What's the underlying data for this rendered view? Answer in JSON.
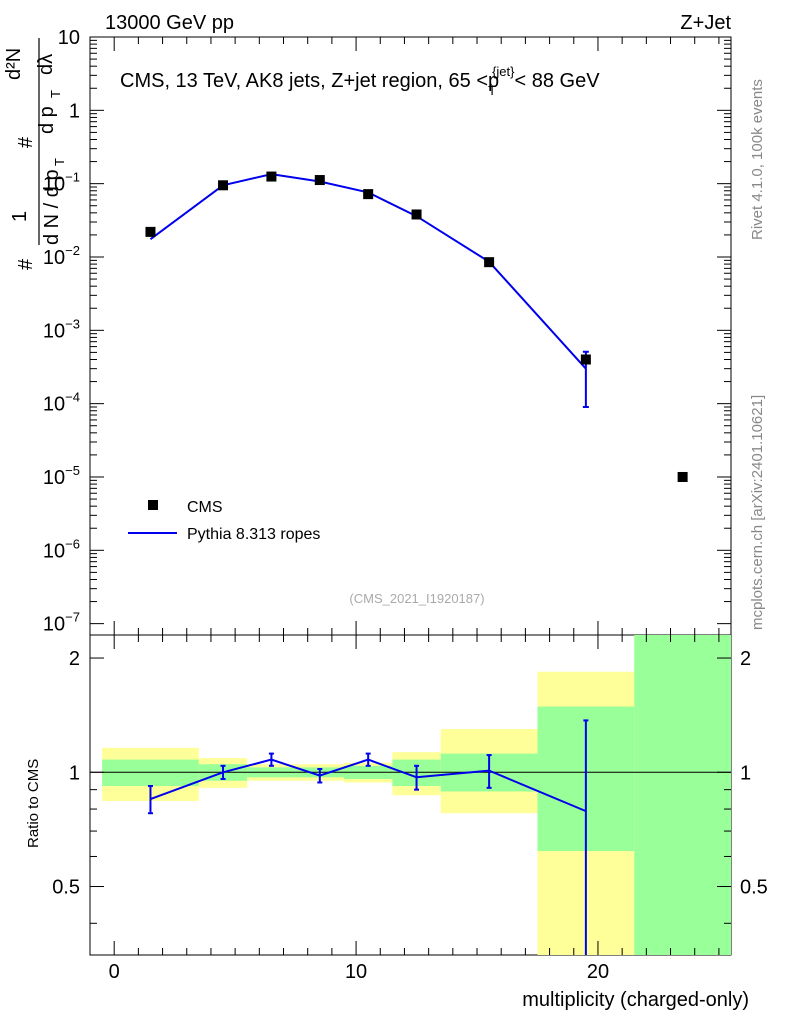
{
  "header": {
    "left": "13000 GeV pp",
    "right": "Z+Jet"
  },
  "side": {
    "rivet": "Rivet 4.1.0,  100k events",
    "mcplots": "mcplots.cern.ch [arXiv:2401.10621]"
  },
  "chart_data": {
    "type": "scatter",
    "title": "CMS, 13 TeV, AK8 jets, Z+jet region, 65 <",
    "title_pt": "p",
    "title_sub": "T",
    "title_sup": "{jet}",
    "title_tail": "< 88 GeV",
    "analysis": "(CMS_2021_I1920187)",
    "xlabel": "multiplicity (charged-only)",
    "ylabel_main": "1/N dN/dp_T dλ",
    "ylabel_ratio": "Ratio to CMS",
    "ylabel_parts": {
      "hash": "#",
      "one": "1",
      "dN": "d N / d p",
      "sub_T": "T",
      "d2N": "d²N",
      "dpT": "d p",
      "dlambda": "dλ"
    },
    "xlim": [
      -1,
      25.5
    ],
    "ylim_main": [
      7e-08,
      10
    ],
    "ylim_ratio": [
      0.33,
      2.3
    ],
    "x_ticks": [
      "0",
      "10",
      "20"
    ],
    "y_ticks_main": [
      {
        "base": "10",
        "exp": ""
      },
      {
        "base": "1",
        "exp": ""
      },
      {
        "base": "10",
        "exp": "−1"
      },
      {
        "base": "10",
        "exp": "−2"
      },
      {
        "base": "10",
        "exp": "−3"
      },
      {
        "base": "10",
        "exp": "−4"
      },
      {
        "base": "10",
        "exp": "−5"
      },
      {
        "base": "10",
        "exp": "−6"
      },
      {
        "base": "10",
        "exp": "−7"
      }
    ],
    "y_ticks_ratio": [
      "0.5",
      "1",
      "2"
    ],
    "legend": [
      {
        "label": "CMS",
        "marker": "square",
        "color": "#000000"
      },
      {
        "label": "Pythia 8.313 ropes",
        "marker": "line",
        "color": "#0000ee"
      }
    ],
    "bins": [
      {
        "x": 1.5,
        "lo": -0.5,
        "hi": 3.5
      },
      {
        "x": 4.5,
        "lo": 3.5,
        "hi": 5.5
      },
      {
        "x": 6.5,
        "lo": 5.5,
        "hi": 7.5
      },
      {
        "x": 8.5,
        "lo": 7.5,
        "hi": 9.5
      },
      {
        "x": 10.5,
        "lo": 9.5,
        "hi": 11.5
      },
      {
        "x": 12.5,
        "lo": 11.5,
        "hi": 13.5
      },
      {
        "x": 15.5,
        "lo": 13.5,
        "hi": 17.5
      },
      {
        "x": 19.5,
        "lo": 17.5,
        "hi": 21.5
      },
      {
        "x": 23.5,
        "lo": 21.5,
        "hi": 25.5
      }
    ],
    "series": [
      {
        "name": "CMS",
        "x": [
          1.5,
          4.5,
          6.5,
          8.5,
          10.5,
          12.5,
          15.5,
          19.5,
          23.5
        ],
        "values": [
          0.022,
          0.095,
          0.125,
          0.112,
          0.072,
          0.038,
          0.0085,
          0.0004,
          1e-05
        ]
      },
      {
        "name": "Pythia 8.313 ropes",
        "x": [
          1.5,
          4.5,
          6.5,
          8.5,
          10.5,
          12.5,
          15.5,
          19.5
        ],
        "values": [
          0.0175,
          0.095,
          0.135,
          0.107,
          0.076,
          0.036,
          0.0086,
          0.0003
        ],
        "err_lo": [
          0.0,
          0.0,
          0.0,
          0.0,
          0.0,
          0.0,
          0.0,
          0.00021
        ],
        "err_hi": [
          0.0,
          0.0,
          0.0,
          0.0,
          0.0,
          0.0,
          0.0,
          0.00021
        ]
      }
    ],
    "ratio": {
      "x": [
        1.5,
        4.5,
        6.5,
        8.5,
        10.5,
        12.5,
        15.5,
        19.5
      ],
      "values": [
        0.85,
        1.0,
        1.08,
        0.98,
        1.08,
        0.97,
        1.01,
        0.79
      ],
      "err_lo": [
        0.07,
        0.04,
        0.04,
        0.04,
        0.04,
        0.07,
        0.1,
        0.46
      ],
      "err_hi": [
        0.07,
        0.04,
        0.04,
        0.04,
        0.04,
        0.07,
        0.1,
        0.58
      ]
    },
    "bands": {
      "green_lo": [
        0.92,
        0.95,
        0.97,
        0.97,
        0.96,
        0.92,
        0.89,
        0.62,
        0.3
      ],
      "green_hi": [
        1.08,
        1.05,
        1.03,
        1.03,
        1.04,
        1.08,
        1.12,
        1.49,
        2.5
      ],
      "yellow_lo": [
        0.84,
        0.91,
        0.95,
        0.95,
        0.94,
        0.87,
        0.78,
        0.3,
        0.3
      ],
      "yellow_hi": [
        1.16,
        1.09,
        1.05,
        1.05,
        1.06,
        1.13,
        1.3,
        1.84,
        2.5
      ]
    }
  }
}
